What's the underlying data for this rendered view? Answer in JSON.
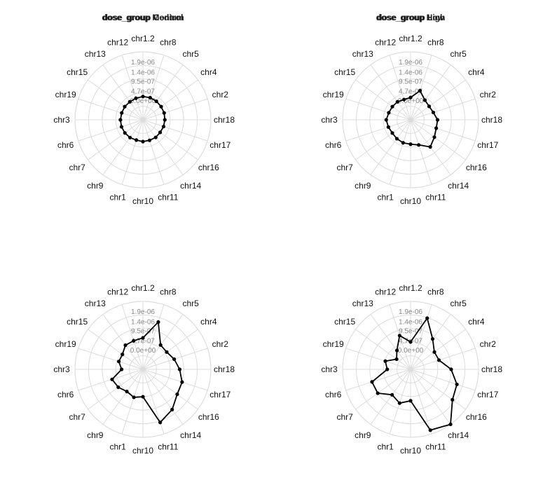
{
  "chart_data": [
    {
      "type": "radar",
      "title": "dose_group Control",
      "categories": [
        "chr1.2",
        "chr8",
        "chr5",
        "chr4",
        "chr2",
        "chr18",
        "chr17",
        "chr16",
        "chr14",
        "chr11",
        "chr10",
        "chr1",
        "chr9",
        "chr7",
        "chr6",
        "chr3",
        "chr19",
        "chr15",
        "chr13",
        "chr12"
      ],
      "radial_ticks": [
        "0.0e+00",
        "4.7e-07",
        "9.5e-07",
        "1.4e-06",
        "1.9e-06"
      ],
      "rlim": [
        -9.5e-07,
        2.4e-06
      ],
      "values": [
        2e-07,
        2e-07,
        1.8e-07,
        1.6e-07,
        1.5e-07,
        1.3e-07,
        1.2e-07,
        1e-07,
        1.2e-07,
        1.1e-07,
        1.2e-07,
        1e-07,
        1.3e-07,
        1.5e-07,
        1.6e-07,
        1.6e-07,
        1.5e-07,
        1.6e-07,
        1.5e-07,
        1.7e-07
      ]
    },
    {
      "type": "radar",
      "title": "dose_group Low",
      "categories": [
        "chr1.2",
        "chr8",
        "chr5",
        "chr4",
        "chr2",
        "chr18",
        "chr17",
        "chr16",
        "chr14",
        "chr11",
        "chr10",
        "chr1",
        "chr9",
        "chr7",
        "chr6",
        "chr3",
        "chr19",
        "chr15",
        "chr13",
        "chr12"
      ],
      "radial_ticks": [
        "0.0e+00",
        "4.7e-07",
        "9.5e-07",
        "1.4e-06",
        "1.9e-06"
      ],
      "rlim": [
        -9.5e-07,
        2.4e-06
      ],
      "values": [
        1.5e-07,
        5.6e-07,
        2.5e-07,
        1.8e-07,
        2.3e-07,
        3.8e-07,
        3.8e-07,
        5e-07,
        7e-07,
        3.5e-07,
        2.5e-07,
        2.4e-07,
        2e-07,
        1.6e-07,
        2e-07,
        2.5e-07,
        1.8e-07,
        1.6e-07,
        1.5e-07,
        1e-07
      ]
    },
    {
      "type": "radar",
      "title": "dose_group Medium",
      "categories": [
        "chr1.2",
        "chr8",
        "chr5",
        "chr4",
        "chr2",
        "chr18",
        "chr17",
        "chr16",
        "chr14",
        "chr11",
        "chr10",
        "chr1",
        "chr9",
        "chr7",
        "chr6",
        "chr3",
        "chr19",
        "chr15",
        "chr13",
        "chr12"
      ],
      "radial_ticks": [
        "0.0e+00",
        "4.7e-07",
        "9.5e-07",
        "1.4e-06",
        "1.9e-06"
      ],
      "rlim": [
        -9.5e-07,
        2.4e-06
      ],
      "values": [
        6e-07,
        1.5e-06,
        5.3e-07,
        5e-07,
        6.7e-07,
        8.6e-07,
        1.08e-06,
        1.14e-06,
        1.5e-06,
        1.8e-06,
        4e-07,
        5e-07,
        4e-07,
        5.5e-07,
        6.5e-07,
        1e-07,
        3e-07,
        3e-07,
        5.2e-07,
        5.3e-07
      ]
    },
    {
      "type": "radar",
      "title": "dose_group High",
      "categories": [
        "chr1.2",
        "chr8",
        "chr5",
        "chr4",
        "chr2",
        "chr18",
        "chr17",
        "chr16",
        "chr14",
        "chr11",
        "chr10",
        "chr1",
        "chr9",
        "chr7",
        "chr6",
        "chr3",
        "chr19",
        "chr15",
        "chr13",
        "chr12"
      ],
      "radial_ticks": [
        "0.0e+00",
        "4.7e-07",
        "9.5e-07",
        "1.4e-06",
        "1.9e-06"
      ],
      "rlim": [
        -9.5e-07,
        2.4e-06
      ],
      "values": [
        4e-07,
        1.7e-06,
        9e-07,
        5e-07,
        5.2e-07,
        1.05e-06,
        1.45e-06,
        1.6e-06,
        2.4e-06,
        2.2e-06,
        6e-07,
        8e-07,
        6e-07,
        1.05e-06,
        1.05e-06,
        2e-07,
        3.6e-07,
        -1e-07,
        2e-07,
        8e-07
      ]
    }
  ]
}
